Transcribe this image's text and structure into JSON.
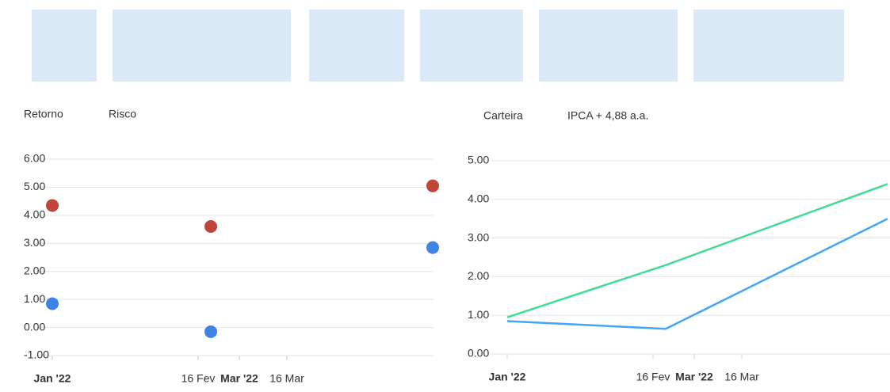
{
  "chart_data": [
    {
      "type": "scatter",
      "x": [
        "2022-01-01",
        "2022-02-20",
        "2022-05-01"
      ],
      "series": [
        {
          "name": "Retorno",
          "color": "#c0443a",
          "values": [
            4.35,
            3.6,
            5.05
          ]
        },
        {
          "name": "Risco",
          "color": "#3f84e5",
          "values": [
            0.85,
            -0.15,
            2.85
          ]
        }
      ],
      "xlim": [
        "2022-01-01",
        "2022-05-01"
      ],
      "xticks": [
        {
          "value": "2022-01-01",
          "label": "Jan '22",
          "bold": true
        },
        {
          "value": "2022-02-16",
          "label": "16 Fev"
        },
        {
          "value": "2022-03-01",
          "label": "Mar '22",
          "bold": true
        },
        {
          "value": "2022-03-16",
          "label": "16 Mar"
        }
      ],
      "ylim": [
        -1,
        6
      ],
      "yticks": [
        {
          "value": 6,
          "label": "6.00"
        },
        {
          "value": 5,
          "label": "5.00"
        },
        {
          "value": 4,
          "label": "4.00"
        },
        {
          "value": 3,
          "label": "3.00"
        },
        {
          "value": 2,
          "label": "2.00"
        },
        {
          "value": 1,
          "label": "1.00"
        },
        {
          "value": 0,
          "label": "0.00"
        },
        {
          "value": -1,
          "label": "-1.00"
        }
      ],
      "grid": true
    },
    {
      "type": "line",
      "x": [
        "2022-01-01",
        "2022-02-20",
        "2022-05-01"
      ],
      "series": [
        {
          "name": "Carteira",
          "color": "#42a5f5",
          "values": [
            0.85,
            0.65,
            3.5
          ]
        },
        {
          "name": "IPCA + 4,88 a.a.",
          "color": "#3ddc97",
          "values": [
            0.95,
            2.3,
            4.4
          ]
        }
      ],
      "xlim": [
        "2022-01-01",
        "2022-05-01"
      ],
      "xticks": [
        {
          "value": "2022-01-01",
          "label": "Jan '22",
          "bold": true
        },
        {
          "value": "2022-02-16",
          "label": "16 Fev"
        },
        {
          "value": "2022-03-01",
          "label": "Mar '22",
          "bold": true
        },
        {
          "value": "2022-03-16",
          "label": "16 Mar"
        }
      ],
      "ylim": [
        0,
        5
      ],
      "yticks": [
        {
          "value": 5,
          "label": "5.00"
        },
        {
          "value": 4,
          "label": "4.00"
        },
        {
          "value": 3,
          "label": "3.00"
        },
        {
          "value": 2,
          "label": "2.00"
        },
        {
          "value": 1,
          "label": "1.00"
        },
        {
          "value": 0,
          "label": "0.00"
        }
      ],
      "grid": true
    }
  ]
}
